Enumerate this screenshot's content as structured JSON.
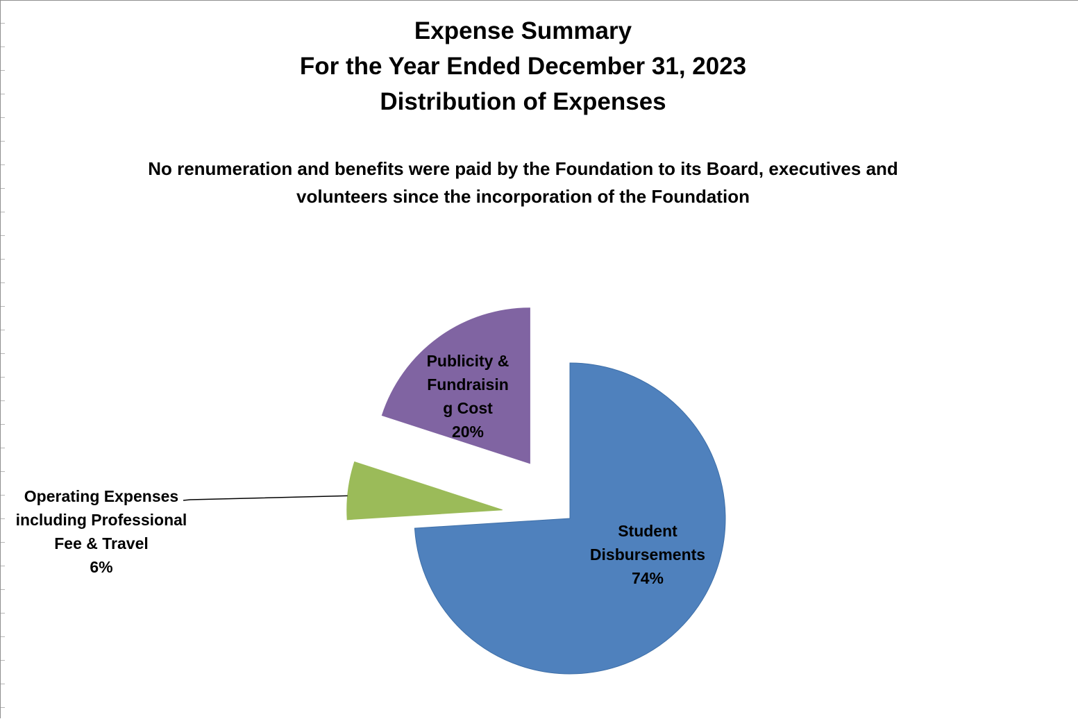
{
  "chart": {
    "title_lines": [
      "Expense Summary",
      "For the Year Ended December 31, 2023",
      "Distribution of Expenses"
    ],
    "note_lines": [
      "No renumeration and benefits were paid by the Foundation to its Board, executives and",
      "volunteers since the incorporation of the Foundation"
    ]
  },
  "chart_data": {
    "type": "pie",
    "title": "Expense Summary For the Year Ended December 31, 2023 Distribution of Expenses",
    "subtitle": "No renumeration and benefits were paid by the Foundation to its Board, executives and volunteers since the incorporation of the Foundation",
    "legend": "none",
    "slices": [
      {
        "name": "Student Disbursements",
        "value": 74,
        "percent_label": "74%",
        "label_lines": [
          "Student",
          "Disbursements",
          "74%"
        ],
        "color": "#4F81BD",
        "exploded": false
      },
      {
        "name": "Operating Expenses including Professional Fee & Travel",
        "value": 6,
        "percent_label": "6%",
        "label_lines": [
          "Operating Expenses",
          "including Professional",
          "Fee & Travel",
          "6%"
        ],
        "color": "#9BBB59",
        "exploded": true
      },
      {
        "name": "Publicity & Fundraising Cost",
        "value": 20,
        "percent_label": "20%",
        "label_lines": [
          "Publicity &",
          "Fundraisin",
          "g Cost",
          "20%"
        ],
        "color": "#8064A2",
        "exploded": true
      }
    ]
  }
}
